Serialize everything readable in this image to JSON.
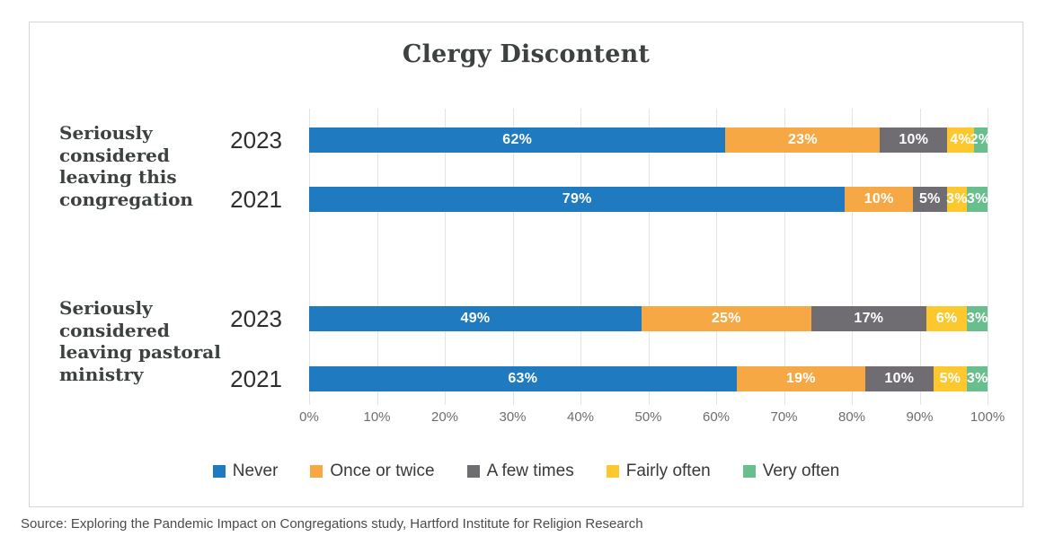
{
  "source_note": "Source: Exploring the Pandemic Impact on Congregations study, Hartford Institute for Religion Research",
  "chart_data": {
    "type": "bar",
    "orientation": "horizontal",
    "stacked": true,
    "title": "Clergy Discontent",
    "value_unit": "%",
    "xlim": [
      0,
      100
    ],
    "x_ticks": [
      "0%",
      "10%",
      "20%",
      "30%",
      "40%",
      "50%",
      "60%",
      "70%",
      "80%",
      "90%",
      "100%"
    ],
    "grid": "vertical",
    "legend_position": "bottom",
    "series_labels": [
      "Never",
      "Once or twice",
      "A few times",
      "Fairly often",
      "Very often"
    ],
    "series_colors": [
      "#1F7AC0",
      "#F6A844",
      "#6F6D71",
      "#FDC72E",
      "#69BE8E"
    ],
    "groups": [
      {
        "label": "Seriously considered leaving this congregation",
        "label_lines": "Seriously\nconsidered\nleaving this\ncongregation"
      },
      {
        "label": "Seriously considered leaving pastoral ministry",
        "label_lines": "Seriously\nconsidered\nleaving pastoral\nministry"
      }
    ],
    "rows": [
      {
        "group_index": 0,
        "year": "2023",
        "values": [
          62,
          23,
          10,
          4,
          2
        ]
      },
      {
        "group_index": 0,
        "year": "2021",
        "values": [
          79,
          10,
          5,
          3,
          3
        ]
      },
      {
        "group_index": 1,
        "year": "2023",
        "values": [
          49,
          25,
          17,
          6,
          3
        ]
      },
      {
        "group_index": 1,
        "year": "2021",
        "values": [
          63,
          19,
          10,
          5,
          3
        ]
      }
    ]
  }
}
